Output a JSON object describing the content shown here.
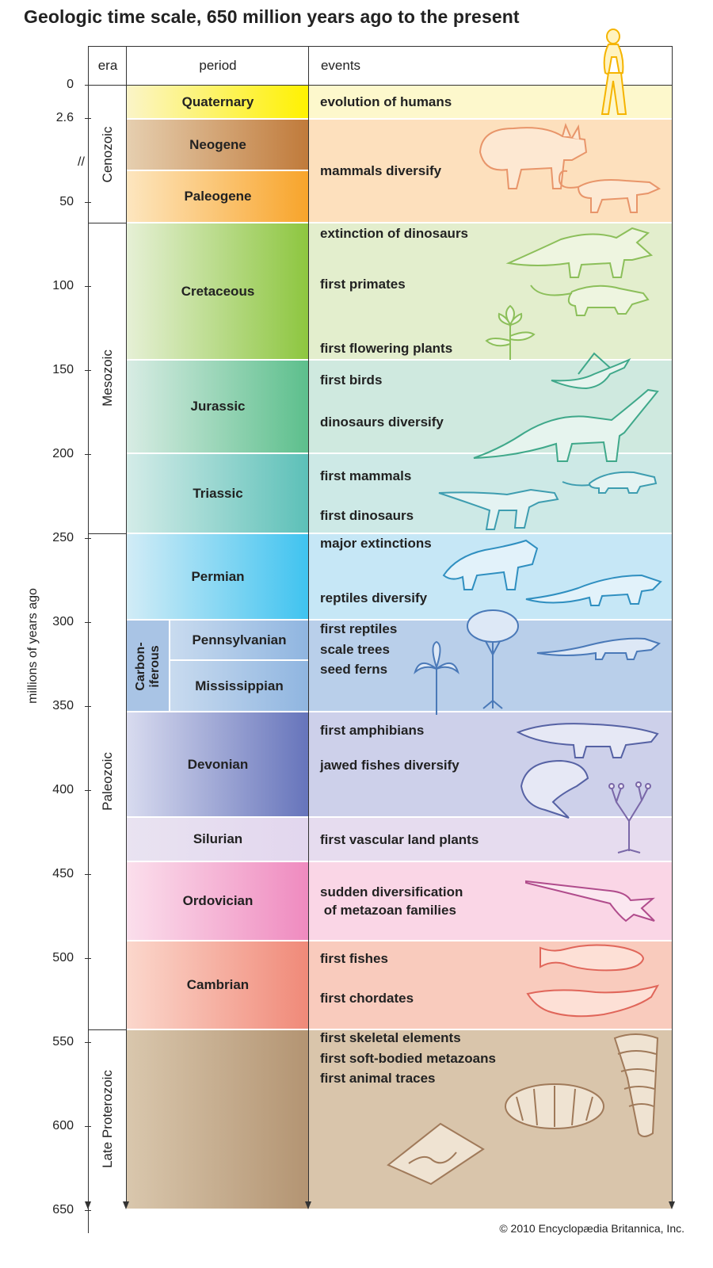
{
  "title": "Geologic time scale, 650 million years ago to the present",
  "axis": {
    "label": "millions of years ago",
    "ticks": [
      "0",
      "2.6",
      "50",
      "100",
      "150",
      "200",
      "250",
      "300",
      "350",
      "400",
      "450",
      "500",
      "550",
      "600",
      "650"
    ],
    "break_mark": "//"
  },
  "headers": {
    "era": "era",
    "period": "period",
    "events": "events"
  },
  "eras": [
    {
      "name": "Cenozoic"
    },
    {
      "name": "Mesozoic"
    },
    {
      "name": "Paleozoic"
    },
    {
      "name": "Late Proterozoic"
    }
  ],
  "periods": [
    {
      "name": "Quaternary",
      "color_from": "#fbf4c8",
      "color_to": "#fff200",
      "event_bg": "#fdf8cc"
    },
    {
      "name": "Neogene",
      "color_from": "#e6cfb0",
      "color_to": "#c07a3a",
      "event_bg": "#fde0bd"
    },
    {
      "name": "Paleogene",
      "color_from": "#fde6bf",
      "color_to": "#f8a42a",
      "event_bg": "#fde0bd"
    },
    {
      "name": "Cretaceous",
      "color_from": "#e6f0d6",
      "color_to": "#8dc63f",
      "event_bg": "#e3eecd"
    },
    {
      "name": "Jurassic",
      "color_from": "#d8ece4",
      "color_to": "#5cbf8c",
      "event_bg": "#cfe9df"
    },
    {
      "name": "Triassic",
      "color_from": "#d4ece8",
      "color_to": "#5cc0b8",
      "event_bg": "#cde9e6"
    },
    {
      "name": "Permian",
      "color_from": "#d2ecf6",
      "color_to": "#3fc3f0",
      "event_bg": "#c6e7f6"
    },
    {
      "name": "Devonian",
      "color_from": "#d8dbef",
      "color_to": "#6674bb",
      "event_bg": "#cdd0ea"
    },
    {
      "name": "Silurian",
      "color_from": "#e9e3f1",
      "color_to": "#e6dcef",
      "event_bg": "#e6dcef"
    },
    {
      "name": "Ordovician",
      "color_from": "#fbdfec",
      "color_to": "#ef8abf",
      "event_bg": "#fad6e6"
    },
    {
      "name": "Cambrian",
      "color_from": "#fbd7cc",
      "color_to": "#f08978",
      "event_bg": "#f9cbbd"
    },
    {
      "name": "",
      "color_from": "#d9c7ad",
      "color_to": "#b39472",
      "event_bg": "#d9c5ab"
    }
  ],
  "carboniferous": {
    "label_line1": "Carbon-",
    "label_line2": "iferous",
    "subperiods": [
      {
        "name": "Pennsylvanian"
      },
      {
        "name": "Mississippian"
      }
    ],
    "event_bg": "#b9cfea"
  },
  "events": [
    "evolution of humans",
    "mammals diversify",
    "extinction of dinosaurs",
    "first primates",
    "first flowering plants",
    "first birds",
    "dinosaurs diversify",
    "first mammals",
    "first dinosaurs",
    "major extinctions",
    "reptiles diversify",
    "first reptiles",
    "scale trees",
    "seed ferns",
    "first amphibians",
    "jawed fishes diversify",
    "first vascular land plants",
    "sudden diversification",
    " of metazoan families",
    "first fishes",
    "first chordates",
    "first skeletal elements",
    "first soft-bodied metazoans",
    "first animal traces"
  ],
  "illustrations": [
    {
      "name": "human-figure",
      "color": "#f5b400"
    },
    {
      "name": "mammal-rhino",
      "color": "#e8956a"
    },
    {
      "name": "mammal-small",
      "color": "#e8956a"
    },
    {
      "name": "triceratops",
      "color": "#8cbf5a"
    },
    {
      "name": "early-primate",
      "color": "#8cbf5a"
    },
    {
      "name": "flower-plant",
      "color": "#8cbf5a"
    },
    {
      "name": "archaeopteryx",
      "color": "#3fa88a"
    },
    {
      "name": "sauropod",
      "color": "#3fa88a"
    },
    {
      "name": "early-mammal",
      "color": "#3e9db0"
    },
    {
      "name": "early-dinosaur",
      "color": "#3e9db0"
    },
    {
      "name": "permian-reptile",
      "color": "#2f8fc0"
    },
    {
      "name": "crocodilian",
      "color": "#2f8fc0"
    },
    {
      "name": "scale-tree",
      "color": "#4a79b8"
    },
    {
      "name": "seed-fern",
      "color": "#4a79b8"
    },
    {
      "name": "lizard",
      "color": "#4a79b8"
    },
    {
      "name": "amphibian",
      "color": "#5662a4"
    },
    {
      "name": "armored-fish",
      "color": "#5662a4"
    },
    {
      "name": "vascular-plant",
      "color": "#7a68a8"
    },
    {
      "name": "nautiloid",
      "color": "#b04c8c"
    },
    {
      "name": "jawless-fish",
      "color": "#e0665a"
    },
    {
      "name": "chordate",
      "color": "#e0665a"
    },
    {
      "name": "cloudina-shell",
      "color": "#a07a5a"
    },
    {
      "name": "dickinsonia",
      "color": "#a07a5a"
    },
    {
      "name": "trace-slab",
      "color": "#a07a5a"
    }
  ],
  "credit": "© 2010 Encyclopædia Britannica, Inc."
}
